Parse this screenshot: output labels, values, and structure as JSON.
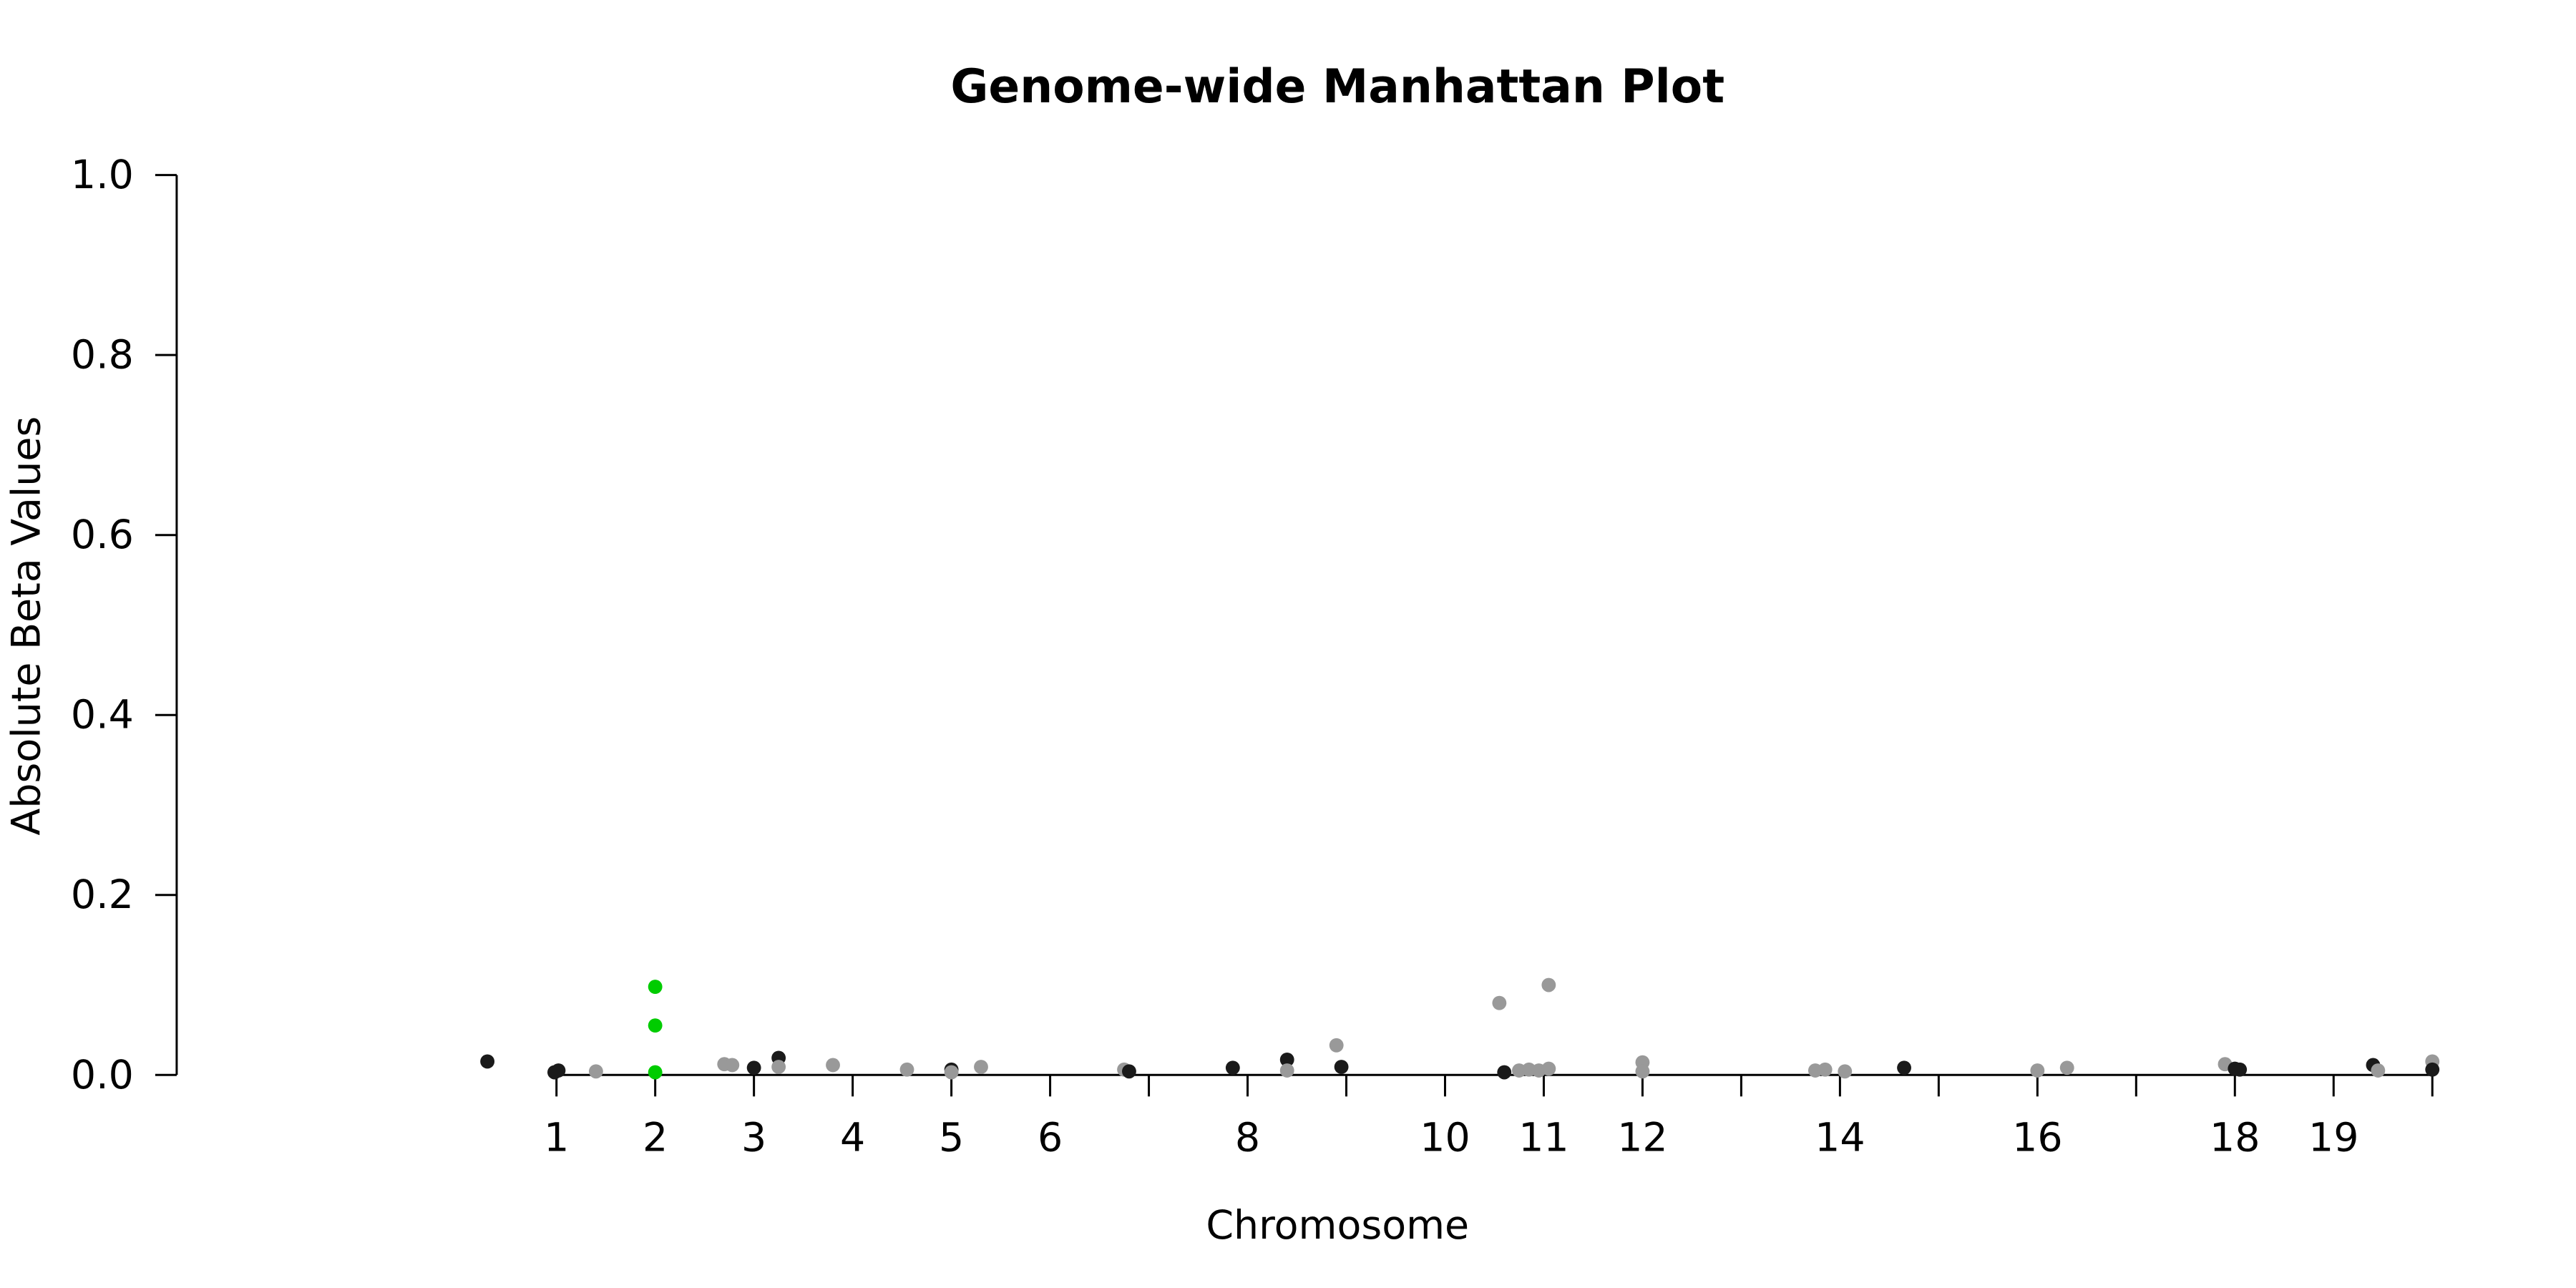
{
  "chart_data": {
    "type": "scatter",
    "title": "Genome-wide Manhattan Plot",
    "xlabel": "Chromosome",
    "ylabel": "Absolute Beta Values",
    "ylim": [
      0,
      1
    ],
    "yticks": [
      "0.0",
      "0.2",
      "0.4",
      "0.6",
      "0.8",
      "1.0"
    ],
    "xlim": [
      0.3,
      20.7
    ],
    "chromosome_ticks": [
      {
        "x": 1,
        "label": "1"
      },
      {
        "x": 2,
        "label": "2"
      },
      {
        "x": 3,
        "label": "3"
      },
      {
        "x": 4,
        "label": "4"
      },
      {
        "x": 5,
        "label": "5"
      },
      {
        "x": 6,
        "label": "6"
      },
      {
        "x": 7,
        "label": ""
      },
      {
        "x": 8,
        "label": "8"
      },
      {
        "x": 9,
        "label": ""
      },
      {
        "x": 10,
        "label": "10"
      },
      {
        "x": 11,
        "label": "11"
      },
      {
        "x": 12,
        "label": "12"
      },
      {
        "x": 13,
        "label": ""
      },
      {
        "x": 14,
        "label": "14"
      },
      {
        "x": 15,
        "label": ""
      },
      {
        "x": 16,
        "label": "16"
      },
      {
        "x": 17,
        "label": ""
      },
      {
        "x": 18,
        "label": "18"
      },
      {
        "x": 19,
        "label": "19"
      },
      {
        "x": 20,
        "label": ""
      }
    ],
    "colors": {
      "dark": "#1a1a1a",
      "light": "#999999",
      "highlight": "#00cc00"
    },
    "points": [
      {
        "x": 0.3,
        "y": 0.015,
        "group": "dark"
      },
      {
        "x": 0.98,
        "y": 0.003,
        "group": "dark"
      },
      {
        "x": 1.02,
        "y": 0.005,
        "group": "dark"
      },
      {
        "x": 1.4,
        "y": 0.004,
        "group": "light"
      },
      {
        "x": 2.0,
        "y": 0.098,
        "group": "highlight"
      },
      {
        "x": 2.0,
        "y": 0.055,
        "group": "highlight"
      },
      {
        "x": 2.0,
        "y": 0.003,
        "group": "highlight"
      },
      {
        "x": 2.7,
        "y": 0.012,
        "group": "light"
      },
      {
        "x": 2.78,
        "y": 0.011,
        "group": "light"
      },
      {
        "x": 3.0,
        "y": 0.008,
        "group": "dark"
      },
      {
        "x": 3.25,
        "y": 0.019,
        "group": "dark"
      },
      {
        "x": 3.25,
        "y": 0.009,
        "group": "light"
      },
      {
        "x": 3.8,
        "y": 0.011,
        "group": "light"
      },
      {
        "x": 4.55,
        "y": 0.006,
        "group": "light"
      },
      {
        "x": 5.0,
        "y": 0.006,
        "group": "dark"
      },
      {
        "x": 5.0,
        "y": 0.003,
        "group": "light"
      },
      {
        "x": 5.3,
        "y": 0.009,
        "group": "light"
      },
      {
        "x": 6.75,
        "y": 0.006,
        "group": "light"
      },
      {
        "x": 6.8,
        "y": 0.004,
        "group": "dark"
      },
      {
        "x": 7.85,
        "y": 0.008,
        "group": "dark"
      },
      {
        "x": 8.4,
        "y": 0.017,
        "group": "dark"
      },
      {
        "x": 8.4,
        "y": 0.005,
        "group": "light"
      },
      {
        "x": 8.9,
        "y": 0.033,
        "group": "light"
      },
      {
        "x": 8.95,
        "y": 0.009,
        "group": "dark"
      },
      {
        "x": 10.55,
        "y": 0.08,
        "group": "light"
      },
      {
        "x": 10.6,
        "y": 0.003,
        "group": "dark"
      },
      {
        "x": 10.75,
        "y": 0.005,
        "group": "light"
      },
      {
        "x": 10.85,
        "y": 0.006,
        "group": "light"
      },
      {
        "x": 10.95,
        "y": 0.005,
        "group": "light"
      },
      {
        "x": 11.05,
        "y": 0.1,
        "group": "light"
      },
      {
        "x": 11.05,
        "y": 0.007,
        "group": "light"
      },
      {
        "x": 12.0,
        "y": 0.014,
        "group": "light"
      },
      {
        "x": 12.0,
        "y": 0.004,
        "group": "light"
      },
      {
        "x": 13.75,
        "y": 0.005,
        "group": "light"
      },
      {
        "x": 13.85,
        "y": 0.006,
        "group": "light"
      },
      {
        "x": 14.05,
        "y": 0.004,
        "group": "light"
      },
      {
        "x": 14.65,
        "y": 0.008,
        "group": "dark"
      },
      {
        "x": 16.0,
        "y": 0.005,
        "group": "light"
      },
      {
        "x": 16.3,
        "y": 0.008,
        "group": "light"
      },
      {
        "x": 17.9,
        "y": 0.012,
        "group": "light"
      },
      {
        "x": 18.0,
        "y": 0.007,
        "group": "dark"
      },
      {
        "x": 18.05,
        "y": 0.006,
        "group": "dark"
      },
      {
        "x": 19.4,
        "y": 0.011,
        "group": "dark"
      },
      {
        "x": 19.45,
        "y": 0.005,
        "group": "light"
      },
      {
        "x": 20.0,
        "y": 0.015,
        "group": "light"
      },
      {
        "x": 20.0,
        "y": 0.006,
        "group": "dark"
      }
    ]
  }
}
